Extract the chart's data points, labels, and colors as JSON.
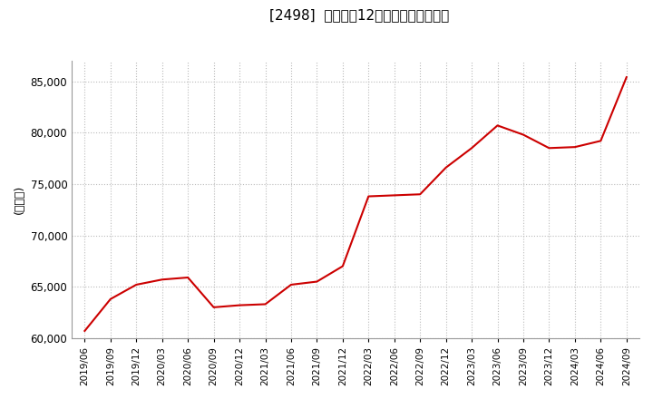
{
  "title": "[2498]　売上高の12か月移動合計の推移",
  "ylabel": "（百万円）",
  "line_color": "#cc0000",
  "background_color": "#ffffff",
  "grid_color": "#bbbbbb",
  "ylim": [
    60000,
    87000
  ],
  "yticks": [
    60000,
    65000,
    70000,
    75000,
    80000,
    85000
  ],
  "dates": [
    "2019/06",
    "2019/09",
    "2019/12",
    "2020/03",
    "2020/06",
    "2020/09",
    "2020/12",
    "2021/03",
    "2021/06",
    "2021/09",
    "2021/12",
    "2022/03",
    "2022/06",
    "2022/09",
    "2022/12",
    "2023/03",
    "2023/06",
    "2023/09",
    "2023/12",
    "2024/03",
    "2024/06",
    "2024/09"
  ],
  "values": [
    60700,
    63800,
    65200,
    65700,
    65900,
    63000,
    63200,
    63300,
    65200,
    65500,
    67000,
    73800,
    73900,
    74000,
    76600,
    78500,
    80700,
    79800,
    78500,
    78600,
    79200,
    85400
  ]
}
